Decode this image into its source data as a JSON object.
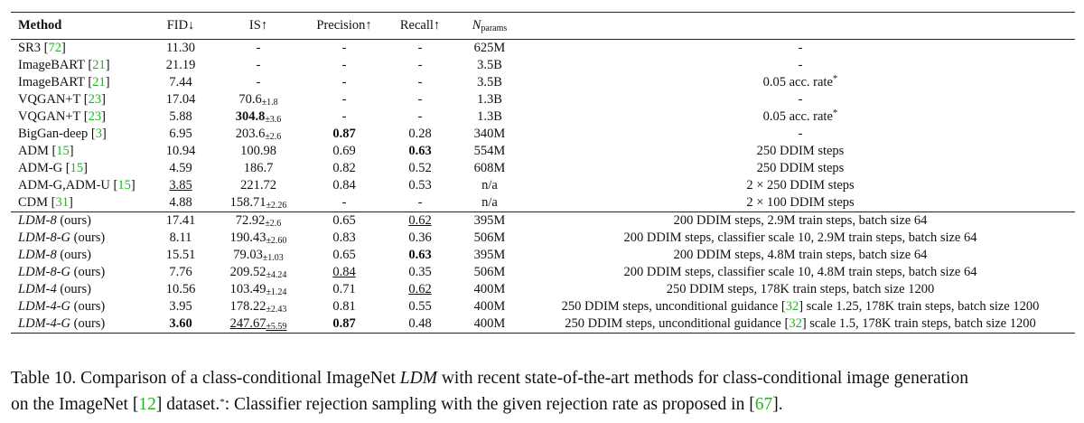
{
  "table": {
    "header": [
      "Method",
      "FID↓",
      "IS↑",
      "Precision↑",
      "Recall↑",
      [
        {
          "t": "N",
          "s": "i"
        },
        {
          "t": "params",
          "s": "sub"
        }
      ]
    ],
    "groups": [
      [
        [
          [
            "SR3 [",
            {
              "t": "72",
              "s": "cite"
            },
            "]"
          ],
          "11.30",
          "-",
          "-",
          "-",
          "625M",
          "-"
        ],
        [
          [
            "ImageBART [",
            {
              "t": "21",
              "s": "cite"
            },
            "]"
          ],
          "21.19",
          "-",
          "-",
          "-",
          "3.5B",
          "-"
        ],
        [
          [
            "ImageBART [",
            {
              "t": "21",
              "s": "cite"
            },
            "]"
          ],
          "7.44",
          "-",
          "-",
          "-",
          "3.5B",
          [
            "0.05 acc. rate",
            {
              "t": "*",
              "s": "sup"
            }
          ]
        ],
        [
          [
            "VQGAN+T [",
            {
              "t": "23",
              "s": "cite"
            },
            "]"
          ],
          "17.04",
          [
            "70.6",
            {
              "t": "±1.8",
              "s": "sub"
            }
          ],
          "-",
          "-",
          "1.3B",
          "-"
        ],
        [
          [
            "VQGAN+T [",
            {
              "t": "23",
              "s": "cite"
            },
            "]"
          ],
          "5.88",
          [
            {
              "t": "304.8",
              "s": "b"
            },
            {
              "t": "±3.6",
              "s": "sub"
            }
          ],
          "-",
          "-",
          "1.3B",
          [
            "0.05 acc. rate",
            {
              "t": "*",
              "s": "sup"
            }
          ]
        ],
        [
          [
            "BigGan-deep [",
            {
              "t": "3",
              "s": "cite"
            },
            "]"
          ],
          "6.95",
          [
            "203.6",
            {
              "t": "±2.6",
              "s": "sub"
            }
          ],
          [
            {
              "t": "0.87",
              "s": "b"
            }
          ],
          "0.28",
          "340M",
          "-"
        ],
        [
          [
            "ADM [",
            {
              "t": "15",
              "s": "cite"
            },
            "]"
          ],
          "10.94",
          "100.98",
          "0.69",
          [
            {
              "t": "0.63",
              "s": "b"
            }
          ],
          "554M",
          "250 DDIM steps"
        ],
        [
          [
            "ADM-G [",
            {
              "t": "15",
              "s": "cite"
            },
            "]"
          ],
          "4.59",
          "186.7",
          "0.82",
          "0.52",
          "608M",
          "250 DDIM steps"
        ],
        [
          [
            "ADM-G,ADM-U [",
            {
              "t": "15",
              "s": "cite"
            },
            "]"
          ],
          [
            {
              "t": "3.85",
              "s": "u"
            }
          ],
          "221.72",
          "0.84",
          "0.53",
          "n/a",
          "2 × 250 DDIM steps"
        ],
        [
          [
            "CDM [",
            {
              "t": "31",
              "s": "cite"
            },
            "]"
          ],
          "4.88",
          [
            "158.71",
            {
              "t": "±2.26",
              "s": "sub"
            }
          ],
          "-",
          "-",
          "n/a",
          "2 × 100 DDIM steps"
        ]
      ],
      [
        [
          [
            {
              "t": "LDM-8",
              "s": "i"
            },
            " (ours)"
          ],
          "17.41",
          [
            "72.92",
            {
              "t": "±2.6",
              "s": "sub"
            }
          ],
          "0.65",
          [
            {
              "t": "0.62",
              "s": "u"
            }
          ],
          "395M",
          "200 DDIM steps, 2.9M train steps, batch size 64"
        ],
        [
          [
            {
              "t": "LDM-8-G",
              "s": "i"
            },
            " (ours)"
          ],
          "8.11",
          [
            "190.43",
            {
              "t": "±2.60",
              "s": "sub"
            }
          ],
          "0.83",
          "0.36",
          "506M",
          "200 DDIM steps, classifier scale 10, 2.9M train steps, batch size 64"
        ],
        [
          [
            {
              "t": "LDM-8",
              "s": "i"
            },
            " (ours)"
          ],
          "15.51",
          [
            "79.03",
            {
              "t": "±1.03",
              "s": "sub"
            }
          ],
          "0.65",
          [
            {
              "t": "0.63",
              "s": "b"
            }
          ],
          "395M",
          "200 DDIM steps, 4.8M train steps, batch size 64"
        ],
        [
          [
            {
              "t": "LDM-8-G",
              "s": "i"
            },
            " (ours)"
          ],
          "7.76",
          [
            "209.52",
            {
              "t": "±4.24",
              "s": "sub"
            }
          ],
          [
            {
              "t": "0.84",
              "s": "u"
            }
          ],
          "0.35",
          "506M",
          "200 DDIM steps, classifier scale 10, 4.8M train steps, batch size 64"
        ],
        [
          [
            {
              "t": "LDM-4",
              "s": "i"
            },
            " (ours)"
          ],
          "10.56",
          [
            "103.49",
            {
              "t": "±1.24",
              "s": "sub"
            }
          ],
          "0.71",
          [
            {
              "t": "0.62",
              "s": "u"
            }
          ],
          "400M",
          "250 DDIM steps, 178K train steps, batch size 1200"
        ],
        [
          [
            {
              "t": "LDM-4-G",
              "s": "i"
            },
            " (ours)"
          ],
          "3.95",
          [
            "178.22",
            {
              "t": "±2.43",
              "s": "sub"
            }
          ],
          "0.81",
          "0.55",
          "400M",
          [
            "250 DDIM steps, unconditional guidance [",
            {
              "t": "32",
              "s": "cite"
            },
            "] scale 1.25, 178K train steps, batch size 1200"
          ]
        ],
        [
          [
            {
              "t": "LDM-4-G",
              "s": "i"
            },
            " (ours)"
          ],
          [
            {
              "t": "3.60",
              "s": "b"
            }
          ],
          [
            {
              "t": "247.67",
              "s": "u"
            },
            {
              "t": "±5.59",
              "s": "sub u"
            }
          ],
          [
            {
              "t": "0.87",
              "s": "b"
            }
          ],
          "0.48",
          "400M",
          [
            "250 DDIM steps, unconditional guidance [",
            {
              "t": "32",
              "s": "cite"
            },
            "] scale 1.5, 178K train steps, batch size 1200"
          ]
        ]
      ]
    ]
  },
  "caption": {
    "lines": [
      [
        "Table 10.  Comparison of a class-conditional ImageNet ",
        {
          "t": "LDM",
          "s": "i"
        },
        " with recent state-of-the-art methods for class-conditional image generation"
      ],
      [
        "on the ImageNet [",
        {
          "t": "12",
          "s": "cite"
        },
        "] dataset.",
        {
          "t": "*",
          "s": "sup"
        },
        ": Classifier rejection sampling with the given rejection rate as proposed in [",
        {
          "t": "67",
          "s": "cite"
        },
        "]."
      ]
    ]
  }
}
